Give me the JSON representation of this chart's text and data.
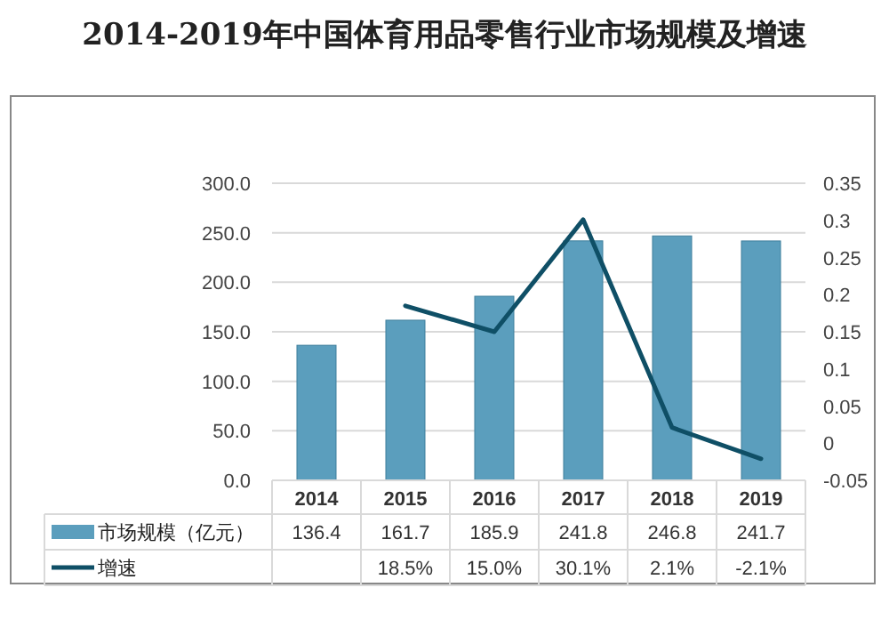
{
  "chart_data": {
    "type": "bar",
    "title": "2014-2019年中国体育用品零售行业市场规模及增速",
    "categories": [
      "2014",
      "2015",
      "2016",
      "2017",
      "2018",
      "2019"
    ],
    "series": [
      {
        "name": "市场规模（亿元）",
        "color": "#5b9ebd",
        "values": [
          136.4,
          161.7,
          185.9,
          241.8,
          246.8,
          241.7
        ],
        "value_labels": [
          "136.4",
          "161.7",
          "185.9",
          "241.8",
          "246.8",
          "241.7"
        ]
      },
      {
        "name": "增速",
        "type": "line",
        "axis": "y2",
        "color": "#0f4f66",
        "values": [
          null,
          0.185,
          0.15,
          0.301,
          0.021,
          -0.021
        ],
        "value_labels": [
          null,
          "18.5%",
          "15.0%",
          "30.1%",
          "2.1%",
          "-2.1%"
        ]
      }
    ],
    "ylim": [
      0,
      300
    ],
    "yticks": [
      {
        "value": 0,
        "label": "0.0"
      },
      {
        "value": 50,
        "label": "50.0"
      },
      {
        "value": 100,
        "label": "100.0"
      },
      {
        "value": 150,
        "label": "150.0"
      },
      {
        "value": 200,
        "label": "200.0"
      },
      {
        "value": 250,
        "label": "250.0"
      },
      {
        "value": 300,
        "label": "300.0"
      }
    ],
    "y2lim": [
      -0.05,
      0.35
    ],
    "y2ticks": [
      -0.05,
      0,
      0.05,
      0.1,
      0.15,
      0.2,
      0.25,
      0.3,
      0.35
    ],
    "grid": "y",
    "legend": "bottom"
  }
}
